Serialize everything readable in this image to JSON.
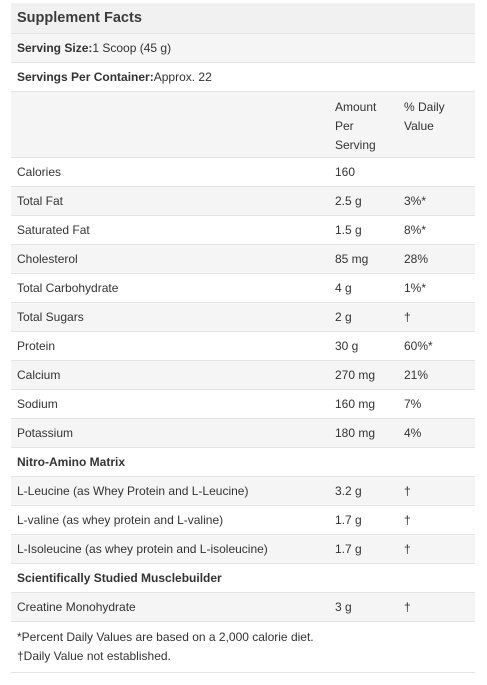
{
  "title": "Supplement Facts",
  "serving_size": {
    "label": "Serving Size:",
    "value": " 1 Scoop (45 g)"
  },
  "servings_per_container": {
    "label": "Servings Per Container:",
    "value": " Approx. 22"
  },
  "columns": {
    "amount": "Amount\nPer\nServing",
    "dv": "% Daily\nValue"
  },
  "nutrients": [
    {
      "name": "Calories",
      "amount": "160",
      "dv": ""
    },
    {
      "name": "Total Fat",
      "amount": "2.5 g",
      "dv": "3%*"
    },
    {
      "name": "Saturated Fat",
      "amount": "1.5 g",
      "dv": "8%*"
    },
    {
      "name": "Cholesterol",
      "amount": "85 mg",
      "dv": "28%"
    },
    {
      "name": "Total Carbohydrate",
      "amount": "4 g",
      "dv": "1%*"
    },
    {
      "name": "Total Sugars",
      "amount": "2 g",
      "dv": "†"
    },
    {
      "name": "Protein",
      "amount": "30 g",
      "dv": "60%*"
    },
    {
      "name": "Calcium",
      "amount": "270 mg",
      "dv": "21%"
    },
    {
      "name": "Sodium",
      "amount": "160 mg",
      "dv": "7%"
    },
    {
      "name": "Potassium",
      "amount": "180 mg",
      "dv": "4%"
    }
  ],
  "amino_section": "Nitro-Amino Matrix",
  "amino": [
    {
      "name": "L-Leucine (as Whey Protein and L-Leucine)",
      "amount": "3.2 g",
      "dv": "†"
    },
    {
      "name": "L-valine (as whey protein and L-valine)",
      "amount": "1.7 g",
      "dv": "†"
    },
    {
      "name": "L-Isoleucine (as whey protein and L-isoleucine)",
      "amount": "1.7 g",
      "dv": "†"
    }
  ],
  "muscle_section": "Scientifically Studied Musclebuilder",
  "muscle": [
    {
      "name": "Creatine Monohydrate",
      "amount": "3 g",
      "dv": "†"
    }
  ],
  "footnotes": [
    "*Percent Daily Values are based on a 2,000 calorie diet.",
    "†Daily Value not established."
  ]
}
